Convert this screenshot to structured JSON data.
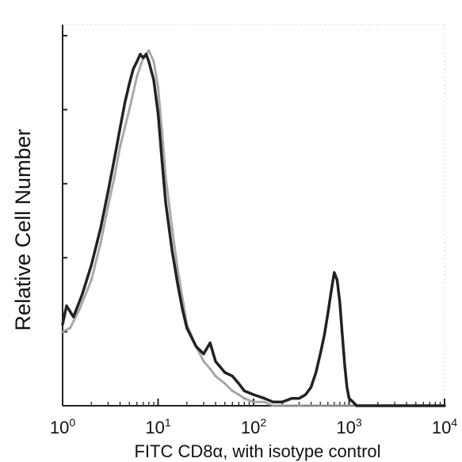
{
  "chart_data": {
    "type": "line",
    "title": "",
    "xlabel": "FITC  CD8α,  with isotype control",
    "ylabel": "Relative Cell Number",
    "x_scale": "log",
    "xlim": [
      1,
      10000
    ],
    "ylim": [
      0,
      1
    ],
    "grid": false,
    "xticks": [
      {
        "value": 1,
        "base": "10",
        "exp": "0"
      },
      {
        "value": 10,
        "base": "10",
        "exp": "1"
      },
      {
        "value": 100,
        "base": "10",
        "exp": "2"
      },
      {
        "value": 1000,
        "base": "10",
        "exp": "3"
      },
      {
        "value": 10000,
        "base": "10",
        "exp": "4"
      }
    ],
    "yticks": [
      0,
      0.2,
      0.4,
      0.6,
      0.8,
      1.0
    ],
    "series": [
      {
        "role": "CD8α stained",
        "color": "#222222",
        "x": [
          1,
          1.1,
          1.3,
          1.6,
          2,
          2.5,
          3,
          3.5,
          4,
          4.5,
          5,
          5.5,
          6,
          6.5,
          7,
          7.5,
          8,
          9,
          10,
          11,
          12,
          14,
          16,
          18,
          20,
          25,
          30,
          35,
          40,
          50,
          60,
          70,
          80,
          100,
          130,
          160,
          200,
          250,
          300,
          350,
          400,
          450,
          500,
          550,
          600,
          650,
          700,
          750,
          800,
          850,
          900,
          950,
          1000,
          1100,
          1200,
          1500,
          2000,
          5000,
          10000
        ],
        "y": [
          0.22,
          0.27,
          0.24,
          0.3,
          0.38,
          0.48,
          0.58,
          0.67,
          0.75,
          0.82,
          0.87,
          0.91,
          0.93,
          0.95,
          0.94,
          0.95,
          0.93,
          0.88,
          0.79,
          0.66,
          0.55,
          0.42,
          0.33,
          0.26,
          0.21,
          0.16,
          0.14,
          0.17,
          0.12,
          0.09,
          0.08,
          0.06,
          0.04,
          0.03,
          0.02,
          0.01,
          0.01,
          0.02,
          0.02,
          0.03,
          0.05,
          0.09,
          0.14,
          0.19,
          0.25,
          0.31,
          0.36,
          0.34,
          0.28,
          0.19,
          0.11,
          0.05,
          0.02,
          0.01,
          0.0,
          0.0,
          0.0,
          0.0,
          0.0
        ]
      },
      {
        "role": "isotype control",
        "color": "#9a9a9a",
        "x": [
          1,
          1.2,
          1.5,
          2,
          2.5,
          3,
          3.5,
          4,
          5,
          6,
          7,
          8,
          9,
          10,
          11,
          12,
          14,
          16,
          18,
          20,
          25,
          30,
          35,
          40,
          50,
          60,
          70,
          80,
          100,
          130,
          160,
          200,
          300,
          500,
          1000,
          10000
        ],
        "y": [
          0.2,
          0.21,
          0.26,
          0.34,
          0.44,
          0.54,
          0.62,
          0.7,
          0.8,
          0.89,
          0.94,
          0.96,
          0.93,
          0.86,
          0.74,
          0.62,
          0.48,
          0.37,
          0.29,
          0.22,
          0.16,
          0.12,
          0.1,
          0.08,
          0.06,
          0.04,
          0.03,
          0.02,
          0.01,
          0.01,
          0.0,
          0.0,
          0.0,
          0.0,
          0.0,
          0.0
        ]
      }
    ]
  }
}
